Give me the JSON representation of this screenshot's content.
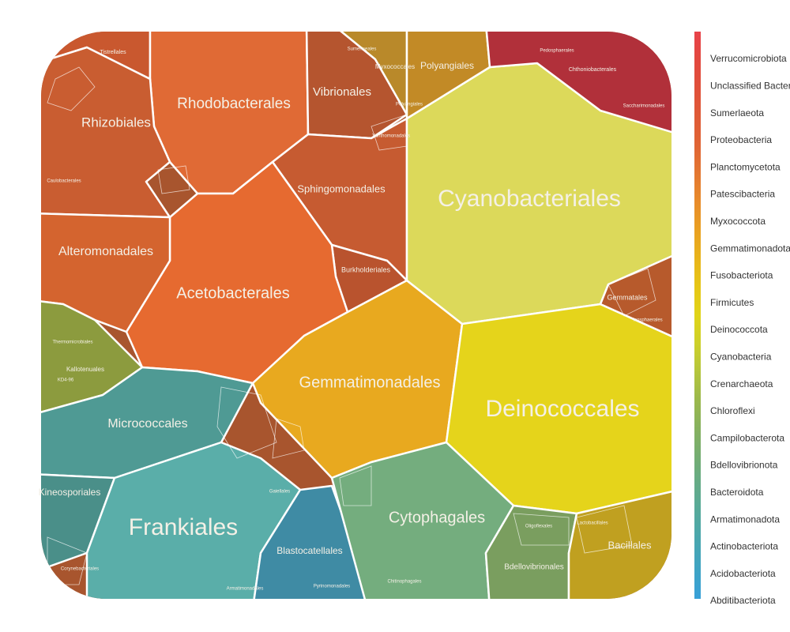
{
  "chart_data": {
    "type": "voronoi-treemap",
    "cells": [
      {
        "label": "Tistrellales",
        "color": "#c9582f"
      },
      {
        "label": "Rhodobacterales",
        "color": "#e06a35"
      },
      {
        "label": "Vibrionales",
        "color": "#b5552f"
      },
      {
        "label": "Sphingomonadales",
        "color": "#c65b31"
      },
      {
        "label": "Burkholderiales",
        "color": "#b9532e"
      },
      {
        "label": "Acetobacterales",
        "color": "#e66a30"
      },
      {
        "label": "Rhizobiales",
        "color": "#c95d31"
      },
      {
        "label": "Alteromonadales",
        "color": "#d4642f"
      },
      {
        "label": "Kallotenuales",
        "color": "#8c9b3e"
      },
      {
        "label": "Micrococcales",
        "color": "#4f9a94"
      },
      {
        "label": "Kineosporiales",
        "color": "#4a8f89"
      },
      {
        "label": "Frankiales",
        "color": "#5aaea9"
      },
      {
        "label": "Blastocatellales",
        "color": "#3f8ba4"
      },
      {
        "label": "Gemmatimonadales",
        "color": "#e8a91f"
      },
      {
        "label": "Cyanobacteriales",
        "color": "#dcd95a"
      },
      {
        "label": "Deinococcales",
        "color": "#e5d41b"
      },
      {
        "label": "Cytophagales",
        "color": "#74ad7e"
      },
      {
        "label": "Bdellovibrionales",
        "color": "#7a9e5f"
      },
      {
        "label": "Bacillales",
        "color": "#c0a020"
      },
      {
        "label": "Gemmatales",
        "color": "#b75a2c"
      },
      {
        "label": "Myxococcales",
        "color": "#b9892a"
      },
      {
        "label": "Polyangiales",
        "color": "#c28a26"
      },
      {
        "label": "Chthoniobacterales",
        "color": "#b1303a"
      }
    ],
    "minor_labels": [
      "Sumerlaeales",
      "Caulobacterales",
      "Xanthomonadales",
      "Isosphaerales",
      "Saccharimonadales",
      "Pedosphaerales",
      "Thermomicrobiales",
      "KD4-96",
      "Chitinophagales",
      "Lactobacillales",
      "Oligoflexales",
      "Armatimonadales",
      "Pyrinomonadales",
      "Corynebacteriales",
      "Polyangiales",
      "Gaiellales"
    ],
    "legend": [
      {
        "name": "Verrucomicrobiota",
        "color": "#e8434a"
      },
      {
        "name": "Unclassified Bacteria",
        "color": "#e2483f"
      },
      {
        "name": "Sumerlaeota",
        "color": "#e0503a"
      },
      {
        "name": "Proteobacteria",
        "color": "#df5a36"
      },
      {
        "name": "Planctomycetota",
        "color": "#e06434"
      },
      {
        "name": "Patescibacteria",
        "color": "#e37731"
      },
      {
        "name": "Myxococcota",
        "color": "#e88b2a"
      },
      {
        "name": "Gemmatimonadota",
        "color": "#e9a021"
      },
      {
        "name": "Fusobacteriota",
        "color": "#e8b41a"
      },
      {
        "name": "Firmicutes",
        "color": "#e6c616"
      },
      {
        "name": "Deinococcota",
        "color": "#e0d418"
      },
      {
        "name": "Cyanobacteria",
        "color": "#cdd02a"
      },
      {
        "name": "Crenarchaeota",
        "color": "#b4c53c"
      },
      {
        "name": "Chloroflexi",
        "color": "#9bb84c"
      },
      {
        "name": "Campilobacterota",
        "color": "#86b15f"
      },
      {
        "name": "Bdellovibrionota",
        "color": "#74ad72"
      },
      {
        "name": "Bacteroidota",
        "color": "#64ab88"
      },
      {
        "name": "Armatimonadota",
        "color": "#55a99c"
      },
      {
        "name": "Actinobacteriota",
        "color": "#48a6b0"
      },
      {
        "name": "Acidobacteriota",
        "color": "#3ea3c4"
      },
      {
        "name": "Abditibacteriota",
        "color": "#38a0d8"
      }
    ]
  }
}
